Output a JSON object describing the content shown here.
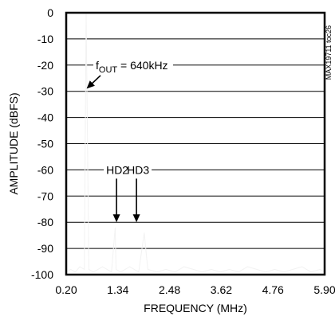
{
  "chart_data": {
    "type": "line",
    "xlabel": "FREQUENCY (MHz)",
    "ylabel": "AMPLITUDE (dBFS)",
    "xlim": [
      0.2,
      5.9
    ],
    "ylim": [
      -100,
      0
    ],
    "x_ticks": [
      "0.20",
      "1.34",
      "2.48",
      "3.62",
      "4.76",
      "5.90"
    ],
    "y_ticks": [
      "0",
      "-10",
      "-20",
      "-30",
      "-40",
      "-50",
      "-60",
      "-70",
      "-80",
      "-90",
      "-100"
    ],
    "grid": "horizontal",
    "figure_id": "MAX19711 toc26",
    "annotations": {
      "fout": {
        "prefix": "f",
        "subscript": "OUT",
        "suffix": " = 640kHz",
        "x": 0.65,
        "y": -29
      },
      "hd2": {
        "label": "HD2",
        "x": 1.31,
        "y": -80
      },
      "hd3": {
        "label": "HD3",
        "x": 1.75,
        "y": -80
      }
    },
    "spectrum": {
      "x": [
        0.2,
        0.3,
        0.4,
        0.5,
        0.6,
        0.64,
        0.7,
        0.8,
        0.9,
        1.0,
        1.1,
        1.2,
        1.28,
        1.3,
        1.4,
        1.5,
        1.6,
        1.7,
        1.8,
        1.92,
        2.0,
        2.2,
        2.4,
        2.6,
        2.8,
        3.0,
        3.2,
        3.4,
        3.6,
        3.8,
        4.0,
        4.2,
        4.4,
        4.6,
        4.8,
        5.0,
        5.2,
        5.4,
        5.6,
        5.8,
        5.9
      ],
      "y": [
        -99,
        -98,
        -99,
        -97,
        -98,
        -0.5,
        -98,
        -99,
        -98,
        -97,
        -98,
        -99,
        -82,
        -98,
        -99,
        -98,
        -97,
        -98,
        -99,
        -84,
        -98,
        -99,
        -98,
        -99,
        -97,
        -98,
        -99,
        -98,
        -99,
        -98,
        -99,
        -97,
        -98,
        -99,
        -98,
        -99,
        -98,
        -97,
        -99,
        -98,
        -99
      ]
    }
  }
}
